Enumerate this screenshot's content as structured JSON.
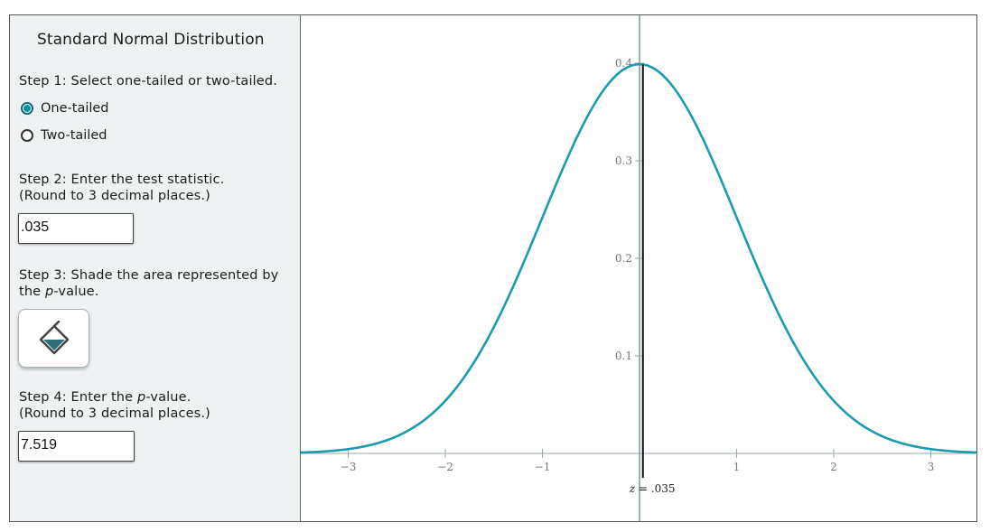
{
  "panel": {
    "title": "Standard Normal Distribution",
    "step1": {
      "label": "Step 1: Select one-tailed or two-tailed."
    },
    "options": [
      {
        "label": "One-tailed",
        "checked": true
      },
      {
        "label": "Two-tailed",
        "checked": false
      }
    ],
    "step2": {
      "line1": "Step 2: Enter the test statistic.",
      "line2": "(Round to 3 decimal places.)"
    },
    "test_statistic": {
      "value": ".035"
    },
    "step3": {
      "line1": "Step 3: Shade the area represented by",
      "line2_pre": "the ",
      "line2_italic": "p",
      "line2_post": "-value."
    },
    "shade_tool": {
      "icon": "paint-bucket-icon"
    },
    "step4": {
      "line1_pre": "Step 4: Enter the ",
      "line1_italic": "p",
      "line1_post": "-value.",
      "line2": "(Round to 3 decimal places.)"
    },
    "p_value": {
      "value": "7.519"
    }
  },
  "colors": {
    "curve": "#1a9cb0",
    "axis": "#9aa6a8",
    "marker": "#111111",
    "panel_bg": "#eef2f3"
  },
  "chart_data": {
    "type": "line",
    "title": "",
    "xlabel": "",
    "ylabel": "",
    "function": "standard normal pdf",
    "xlim": [
      -3.5,
      3.5
    ],
    "ylim": [
      0,
      0.4
    ],
    "x_ticks": [
      -3,
      -2,
      -1,
      1,
      2,
      3
    ],
    "x_tick_labels": [
      "−3",
      "−2",
      "−1",
      "1",
      "2",
      "3"
    ],
    "y_ticks": [
      0.1,
      0.2,
      0.3,
      0.4
    ],
    "y_tick_labels": [
      "0.1",
      "0.2",
      "0.3",
      "0.4"
    ],
    "marker": {
      "z": 0.035,
      "label_var": "z",
      "label_eq": "=",
      "label_value": ".035"
    },
    "grid": false,
    "legend": "none"
  }
}
